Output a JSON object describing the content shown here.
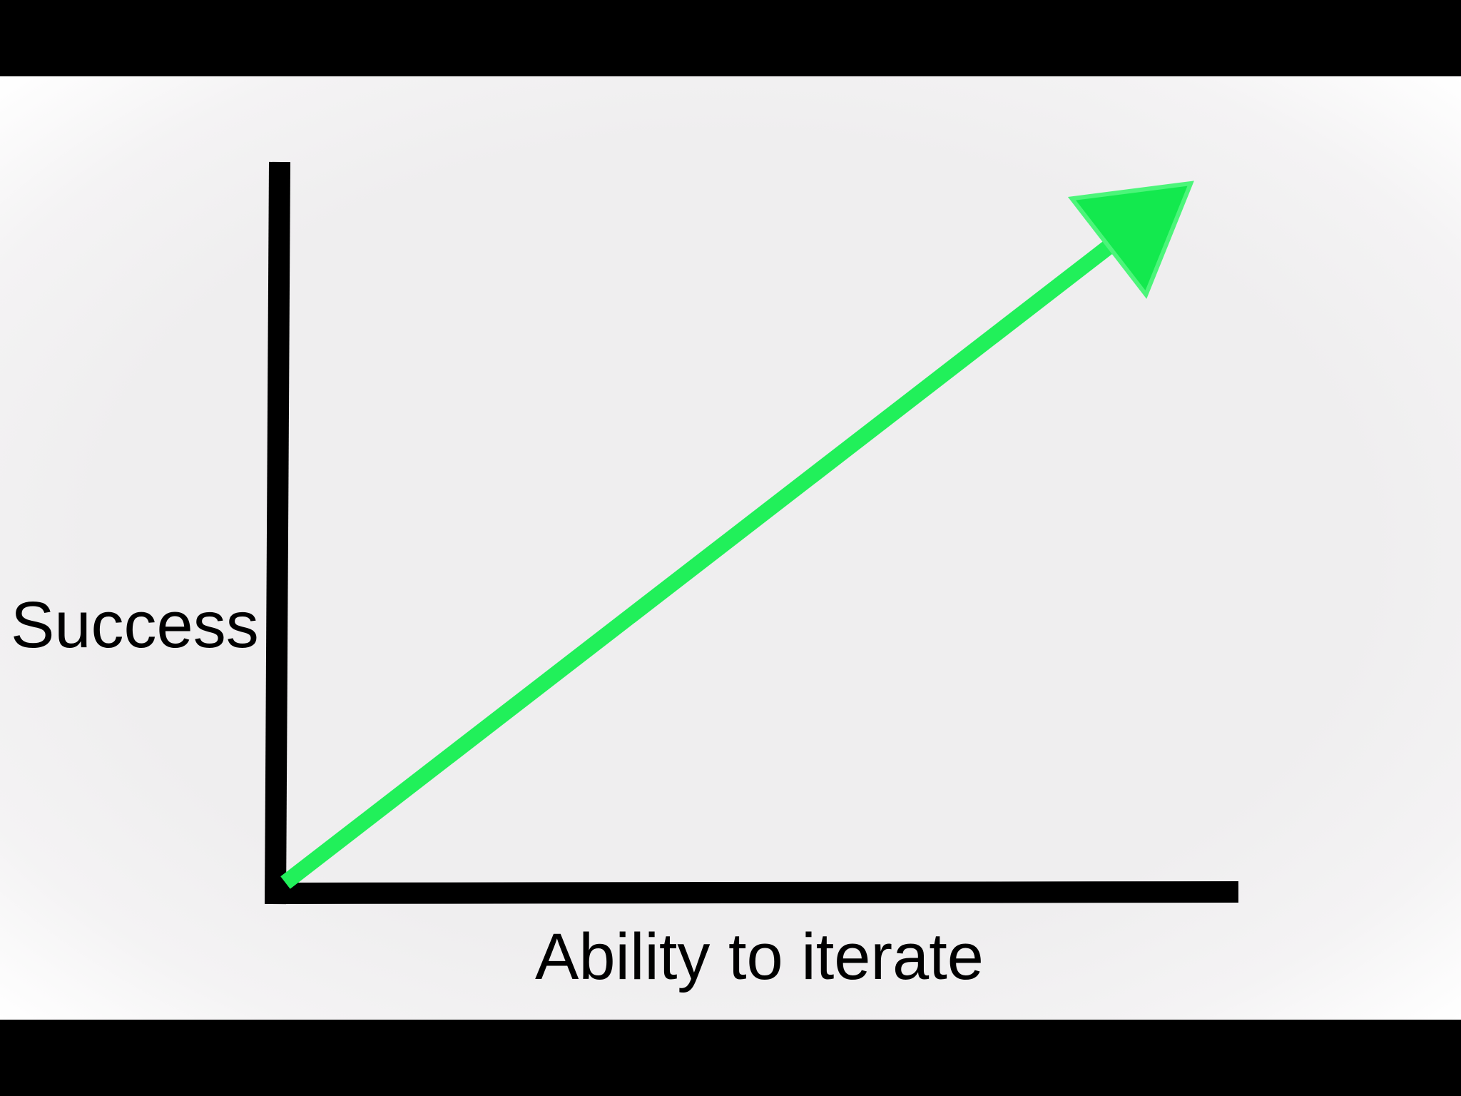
{
  "chart_data": {
    "type": "line",
    "title": "",
    "xlabel": "Ability to iterate",
    "ylabel": "Success",
    "xlim": [
      0,
      1
    ],
    "ylim": [
      0,
      1
    ],
    "grid": false,
    "legend": "none",
    "series": [
      {
        "x": [
          0,
          0.95
        ],
        "y": [
          0,
          1
        ],
        "color": "#21f05a",
        "end_marker": "arrowhead"
      }
    ]
  },
  "colors": {
    "background": "#efeeef",
    "letterbox": "#000000",
    "axis": "#000000",
    "trend": "#21f05a"
  }
}
